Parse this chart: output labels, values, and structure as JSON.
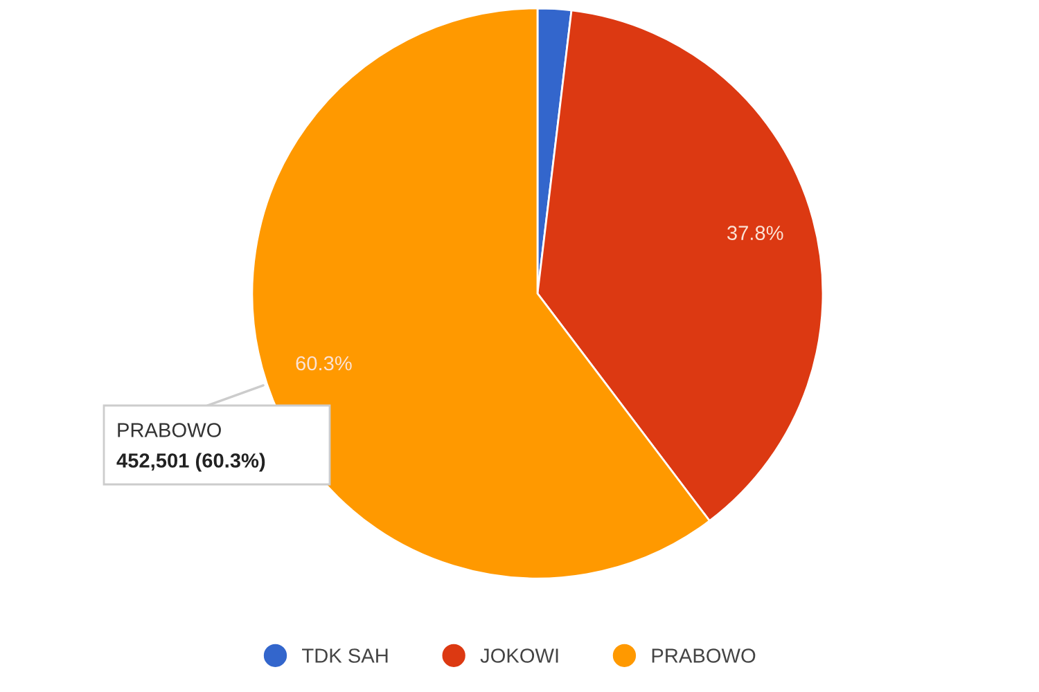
{
  "chart_data": {
    "type": "pie",
    "categories": [
      "TDK SAH",
      "JOKOWI",
      "PRABOWO"
    ],
    "values": [
      1.9,
      37.8,
      60.3
    ],
    "colors": [
      "#3366cc",
      "#dc3912",
      "#ff9900"
    ],
    "value_labels": [
      null,
      "37.8%",
      "60.3%"
    ],
    "legend": "bottom",
    "annotations": [
      {
        "text": "PRABOWO\n452,501 (60.3%)",
        "x": "PRABOWO"
      }
    ]
  }
}
